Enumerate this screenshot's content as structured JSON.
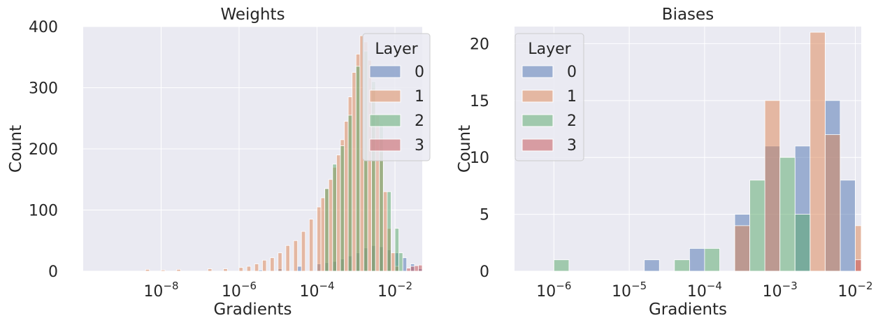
{
  "chart_data": [
    {
      "type": "histogram",
      "title": "Weights",
      "xlabel": "Gradients",
      "ylabel": "Count",
      "xscale": "log",
      "xlim": [
        1e-10,
        0.05
      ],
      "ylim": [
        0,
        400
      ],
      "xticks": [
        {
          "value": 1e-08,
          "base": "10",
          "exp": "−8"
        },
        {
          "value": 1e-06,
          "base": "10",
          "exp": "−6"
        },
        {
          "value": 0.0001,
          "base": "10",
          "exp": "−4"
        },
        {
          "value": 0.01,
          "base": "10",
          "exp": "−2"
        }
      ],
      "yticks": [
        0,
        100,
        200,
        300,
        400
      ],
      "grid": true,
      "legend": {
        "title": "Layer",
        "entries": [
          "0",
          "1",
          "2",
          "3"
        ],
        "placement": "top-right"
      },
      "series": [
        {
          "name": "0",
          "color": "#4c72b0",
          "bins": [
            [
              -6.0,
              0
            ],
            [
              -5.5,
              2
            ],
            [
              -5.0,
              4
            ],
            [
              -4.5,
              8
            ],
            [
              -4.0,
              12
            ],
            [
              -3.8,
              14
            ],
            [
              -3.6,
              16
            ],
            [
              -3.4,
              20
            ],
            [
              -3.2,
              25
            ],
            [
              -3.0,
              30
            ],
            [
              -2.8,
              38
            ],
            [
              -2.6,
              42
            ],
            [
              -2.4,
              40
            ],
            [
              -2.2,
              35
            ],
            [
              -2.0,
              30
            ],
            [
              -1.8,
              22
            ],
            [
              -1.6,
              12
            ],
            [
              -1.4,
              4
            ]
          ]
        },
        {
          "name": "1",
          "color": "#dd8452",
          "bins": [
            [
              -8.4,
              3
            ],
            [
              -8.0,
              2
            ],
            [
              -7.6,
              3
            ],
            [
              -6.8,
              4
            ],
            [
              -6.4,
              4
            ],
            [
              -6.0,
              6
            ],
            [
              -5.8,
              8
            ],
            [
              -5.6,
              12
            ],
            [
              -5.4,
              18
            ],
            [
              -5.2,
              22
            ],
            [
              -5.0,
              30
            ],
            [
              -4.8,
              42
            ],
            [
              -4.6,
              50
            ],
            [
              -4.4,
              65
            ],
            [
              -4.2,
              85
            ],
            [
              -4.0,
              105
            ],
            [
              -3.9,
              120
            ],
            [
              -3.8,
              135
            ],
            [
              -3.7,
              150
            ],
            [
              -3.6,
              170
            ],
            [
              -3.5,
              190
            ],
            [
              -3.4,
              215
            ],
            [
              -3.3,
              245
            ],
            [
              -3.2,
              285
            ],
            [
              -3.1,
              325
            ],
            [
              -3.0,
              355
            ],
            [
              -2.9,
              385
            ],
            [
              -2.8,
              375
            ],
            [
              -2.7,
              345
            ],
            [
              -2.6,
              300
            ],
            [
              -2.5,
              255
            ],
            [
              -2.4,
              195
            ],
            [
              -2.3,
              130
            ],
            [
              -2.2,
              70
            ],
            [
              -2.1,
              30
            ],
            [
              -2.0,
              8
            ]
          ]
        },
        {
          "name": "2",
          "color": "#55a868",
          "bins": [
            [
              -3.8,
              135
            ],
            [
              -3.6,
              175
            ],
            [
              -3.4,
              205
            ],
            [
              -3.2,
              255
            ],
            [
              -3.0,
              335
            ],
            [
              -2.8,
              360
            ],
            [
              -2.6,
              310
            ],
            [
              -2.4,
              240
            ],
            [
              -2.2,
              130
            ],
            [
              -2.0,
              70
            ],
            [
              -1.9,
              30
            ]
          ]
        },
        {
          "name": "3",
          "color": "#c44e52",
          "bins": [
            [
              -1.7,
              5
            ],
            [
              -1.6,
              8
            ],
            [
              -1.5,
              9
            ],
            [
              -1.4,
              10
            ],
            [
              -1.3,
              9
            ],
            [
              -1.2,
              8
            ],
            [
              -1.1,
              9
            ],
            [
              -1.0,
              10
            ],
            [
              -0.9,
              9
            ]
          ]
        }
      ]
    },
    {
      "type": "histogram",
      "title": "Biases",
      "xlabel": "Gradients",
      "ylabel": "Count",
      "xscale": "log",
      "xlim": [
        3e-07,
        0.012
      ],
      "ylim": [
        0,
        21.5
      ],
      "xticks": [
        {
          "value": 1e-06,
          "base": "10",
          "exp": "−6"
        },
        {
          "value": 1e-05,
          "base": "10",
          "exp": "−5"
        },
        {
          "value": 0.0001,
          "base": "10",
          "exp": "−4"
        },
        {
          "value": 0.001,
          "base": "10",
          "exp": "−3"
        },
        {
          "value": 0.01,
          "base": "10",
          "exp": "−2"
        }
      ],
      "yticks": [
        0,
        5,
        10,
        15,
        20
      ],
      "grid": true,
      "legend": {
        "title": "Layer",
        "entries": [
          "0",
          "1",
          "2",
          "3"
        ],
        "placement": "top-left"
      },
      "series": [
        {
          "name": "0",
          "color": "#4c72b0",
          "bins": [
            [
              -4.8,
              1
            ],
            [
              -4.2,
              2
            ],
            [
              -3.6,
              5
            ],
            [
              -3.2,
              11
            ],
            [
              -2.8,
              11
            ],
            [
              -2.4,
              15
            ],
            [
              -2.2,
              8
            ]
          ]
        },
        {
          "name": "1",
          "color": "#dd8452",
          "bins": [
            [
              -3.6,
              4
            ],
            [
              -3.2,
              15
            ],
            [
              -2.6,
              21
            ],
            [
              -2.4,
              12
            ],
            [
              -2.0,
              4
            ]
          ]
        },
        {
          "name": "2",
          "color": "#55a868",
          "bins": [
            [
              -6.0,
              1
            ],
            [
              -4.4,
              1
            ],
            [
              -4.0,
              2
            ],
            [
              -3.4,
              8
            ],
            [
              -3.0,
              10
            ],
            [
              -2.8,
              5
            ]
          ]
        },
        {
          "name": "3",
          "color": "#c44e52",
          "bins": [
            [
              -2.0,
              1
            ]
          ]
        }
      ]
    }
  ]
}
